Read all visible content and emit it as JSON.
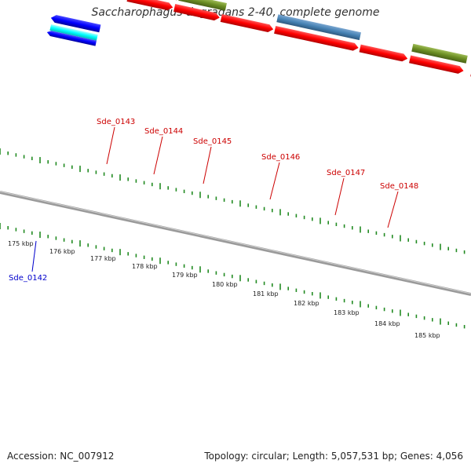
{
  "title": "Saccharophagus degradans 2-40, complete genome",
  "accession": "Accession: NC_007912",
  "summary": "Topology: circular; Length: 5,057,531 bp; Genes: 4,056",
  "colors": {
    "forward_cds": "#ff0000",
    "reverse_cds": "#0000ff",
    "backbone": "#808080",
    "tick": "#228b22",
    "label_forward": "#cc0000",
    "label_reverse": "#0000cc",
    "olive_feature": "#6b8e23",
    "steel_feature": "#4682b4",
    "cyan_feature": "#00ffff",
    "gray_feature": "#555555"
  },
  "scale_labels": [
    "175 kbp",
    "176 kbp",
    "177 kbp",
    "178 kbp",
    "179 kbp",
    "180 kbp",
    "181 kbp",
    "182 kbp",
    "183 kbp",
    "184 kbp",
    "185 kbp"
  ],
  "gene_labels": [
    {
      "name": "Sde_0143",
      "strand": "forward"
    },
    {
      "name": "Sde_0144",
      "strand": "forward"
    },
    {
      "name": "Sde_0145",
      "strand": "forward"
    },
    {
      "name": "Sde_0146",
      "strand": "forward"
    },
    {
      "name": "Sde_0147",
      "strand": "forward"
    },
    {
      "name": "Sde_0148",
      "strand": "forward"
    },
    {
      "name": "Sde_0142",
      "strand": "reverse"
    }
  ]
}
